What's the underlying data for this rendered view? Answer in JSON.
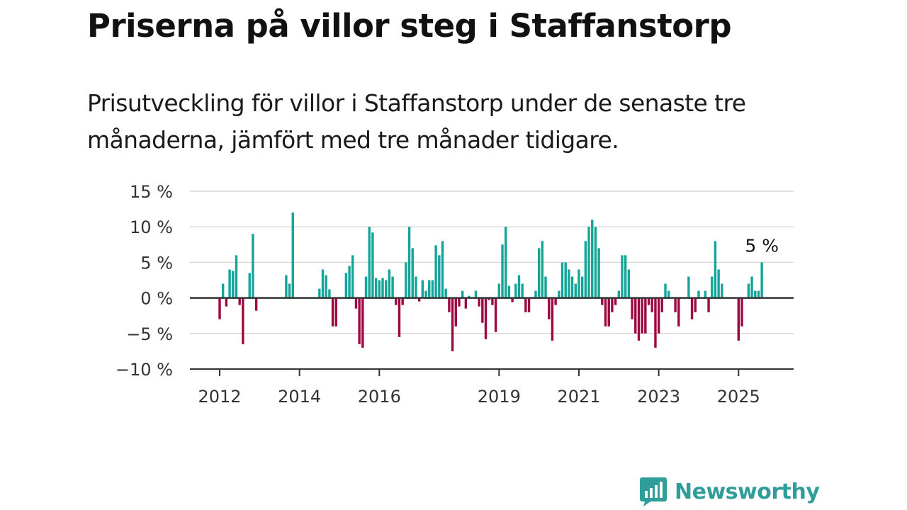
{
  "title": "Priserna på villor steg i Staffanstorp",
  "subtitle": "Prisutveckling för villor i Staffanstorp under de senaste tre månaderna, jämfört med tre månader tidigare.",
  "brand": {
    "name": "Newsworthy",
    "icon": "bar-chart-speech-bubble-icon",
    "color": "#2f9e9a"
  },
  "colors": {
    "positive": "#14a599",
    "negative": "#9e0842",
    "zero_line": "#333333",
    "grid": "#d9d9d9",
    "axis_text": "#333333"
  },
  "chart_data": {
    "type": "bar",
    "title": "Priserna på villor steg i Staffanstorp",
    "subtitle": "Prisutveckling för villor i Staffanstorp under de senaste tre månaderna, jämfört med tre månader tidigare.",
    "xlabel": "",
    "ylabel": "",
    "unit": "%",
    "ylim": [
      -10,
      15
    ],
    "yticks": [
      15,
      10,
      5,
      0,
      -5,
      -10
    ],
    "ytick_labels": [
      "15 %",
      "10 %",
      "5 %",
      "0 %",
      "−5 %",
      "−10 %"
    ],
    "xticks": [
      "2012",
      "2014",
      "2016",
      "2019",
      "2021",
      "2023",
      "2025"
    ],
    "grid": "horizontal",
    "last_value_label": "5 %",
    "x_start": "2012-01",
    "frequency": "monthly",
    "values": [
      -3,
      2,
      -1.2,
      4,
      3.8,
      6,
      -1,
      -6.5,
      0,
      3.5,
      9,
      -1.8,
      null,
      null,
      null,
      null,
      null,
      null,
      null,
      null,
      3.2,
      2,
      12,
      null,
      null,
      null,
      null,
      null,
      null,
      null,
      1.3,
      4,
      3.2,
      1.2,
      -4,
      -4,
      null,
      null,
      3.5,
      4.5,
      6,
      -1.5,
      -6.5,
      -7,
      3,
      10,
      9.2,
      2.8,
      2.5,
      2.8,
      2.5,
      4,
      3,
      -1,
      -5.5,
      -1,
      5,
      10,
      7,
      3,
      -0.5,
      2.5,
      1,
      2.5,
      2.5,
      7.4,
      6,
      8,
      1.3,
      -2,
      -7.5,
      -4,
      -1.2,
      1,
      -1.5,
      0.3,
      0,
      1,
      -1.2,
      -3.5,
      -5.8,
      -0.3,
      -1,
      -4.8,
      2,
      7.5,
      10,
      1.7,
      -0.6,
      2,
      3.2,
      2,
      -2,
      -2,
      0,
      1,
      7,
      8,
      3,
      -3,
      -6,
      -1,
      1,
      5,
      5,
      4,
      3,
      2,
      4,
      3,
      8,
      10,
      11,
      10,
      7,
      -1,
      -4,
      -4,
      -2,
      -1,
      1,
      6,
      6,
      4,
      -3,
      -5,
      -6,
      -5,
      -5,
      -1,
      -2,
      -7,
      -5,
      -2,
      2,
      1,
      0,
      -2,
      -4,
      0,
      0,
      3,
      -3,
      -2,
      1,
      0,
      1,
      -2,
      3,
      8,
      4,
      2,
      0,
      0,
      0,
      0,
      -6,
      -4,
      0,
      2,
      3,
      1,
      1,
      5
    ]
  }
}
